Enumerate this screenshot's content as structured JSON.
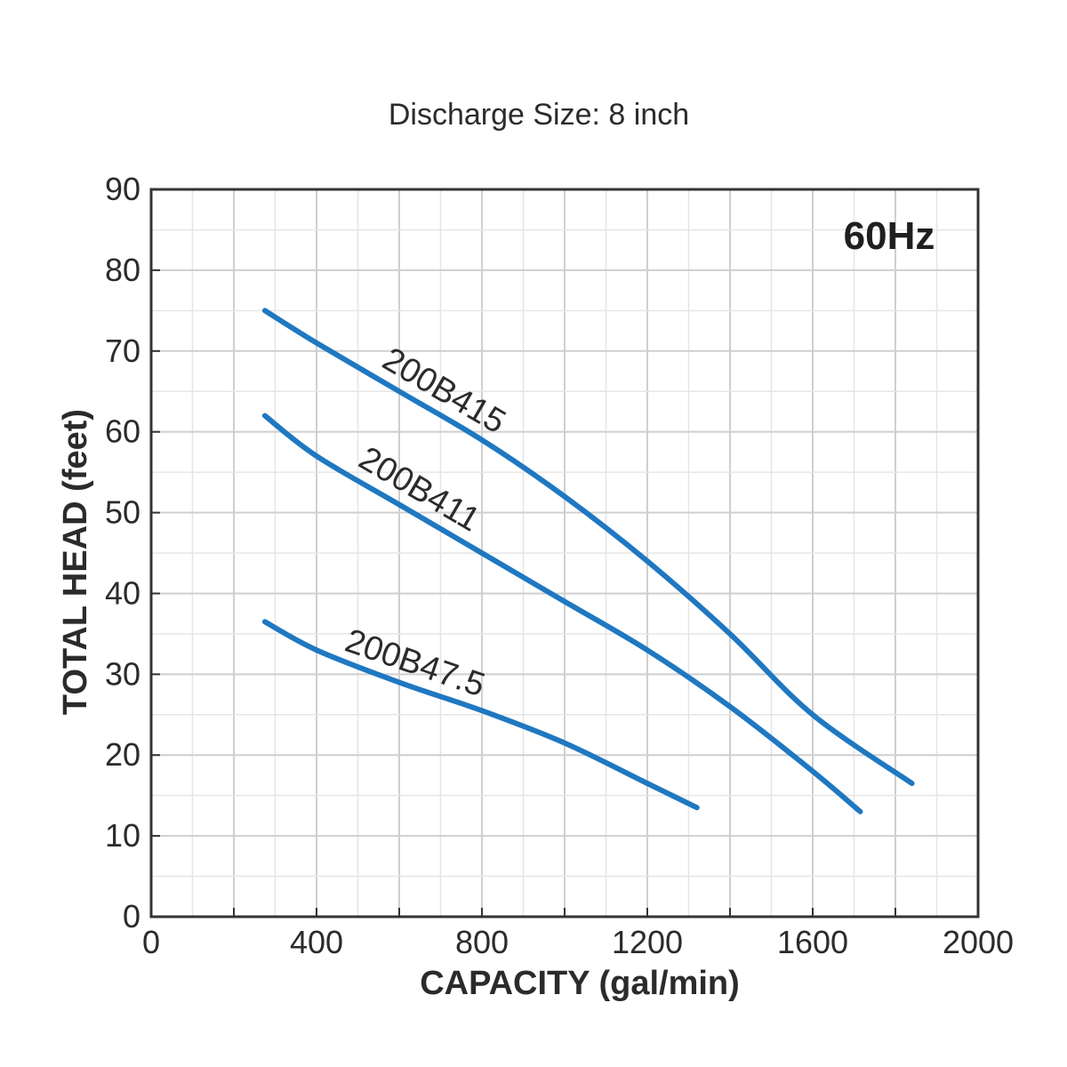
{
  "chart_data": {
    "type": "line",
    "title": "Discharge Size: 8 inch",
    "annotation": "60Hz",
    "xlabel": "CAPACITY (gal/min)",
    "ylabel": "TOTAL HEAD (feet)",
    "xlim": [
      0,
      2000
    ],
    "ylim": [
      0,
      90
    ],
    "xticks": [
      0,
      400,
      800,
      1200,
      1600,
      2000
    ],
    "yticks": [
      0,
      10,
      20,
      30,
      40,
      50,
      60,
      70,
      80,
      90
    ],
    "grid": true,
    "series": [
      {
        "name": "200B415",
        "color": "#1f78c1",
        "x": [
          275,
          400,
          600,
          800,
          1000,
          1200,
          1400,
          1600,
          1840
        ],
        "y": [
          75,
          71,
          65,
          59,
          52,
          44,
          35,
          25,
          16.5
        ]
      },
      {
        "name": "200B411",
        "color": "#1f78c1",
        "x": [
          275,
          400,
          600,
          800,
          1000,
          1200,
          1400,
          1600,
          1715
        ],
        "y": [
          62,
          57,
          51,
          45,
          39,
          33,
          26,
          18,
          13
        ]
      },
      {
        "name": "200B47.5",
        "color": "#1f78c1",
        "x": [
          275,
          400,
          600,
          800,
          1000,
          1200,
          1320
        ],
        "y": [
          36.5,
          33,
          29,
          25.5,
          21.5,
          16.5,
          13.5
        ]
      }
    ]
  }
}
